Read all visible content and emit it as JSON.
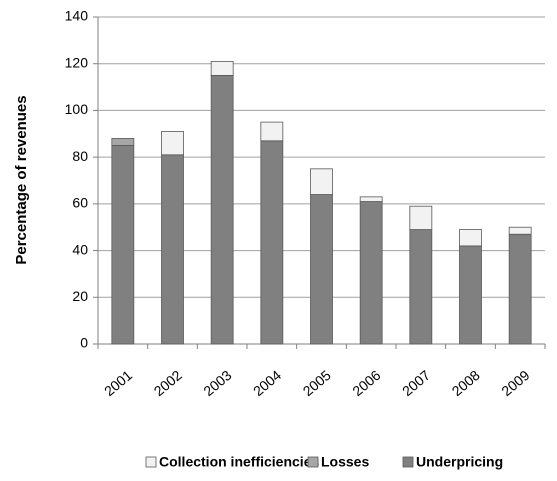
{
  "chart_data": {
    "type": "stacked_bar",
    "y_label": "Percentage of revenues",
    "categories": [
      "2001",
      "2002",
      "2003",
      "2004",
      "2005",
      "2006",
      "2007",
      "2008",
      "2009"
    ],
    "series": [
      {
        "name": "Underpricing",
        "color": "#808080",
        "values": [
          85,
          81,
          115,
          87,
          64,
          61,
          49,
          42,
          47
        ]
      },
      {
        "name": "Losses",
        "color": "#a6a6a6",
        "values": [
          3,
          0,
          0,
          0,
          0,
          0,
          0,
          0,
          0
        ]
      },
      {
        "name": "Collection inefficiencies",
        "color": "#f2f2f2",
        "values": [
          0,
          10,
          6,
          8,
          11,
          2,
          10,
          7,
          3
        ]
      }
    ],
    "ylim": [
      0,
      140
    ],
    "yticks": [
      0,
      20,
      40,
      60,
      80,
      100,
      120,
      140
    ],
    "grid": true,
    "legend": "bottom"
  }
}
